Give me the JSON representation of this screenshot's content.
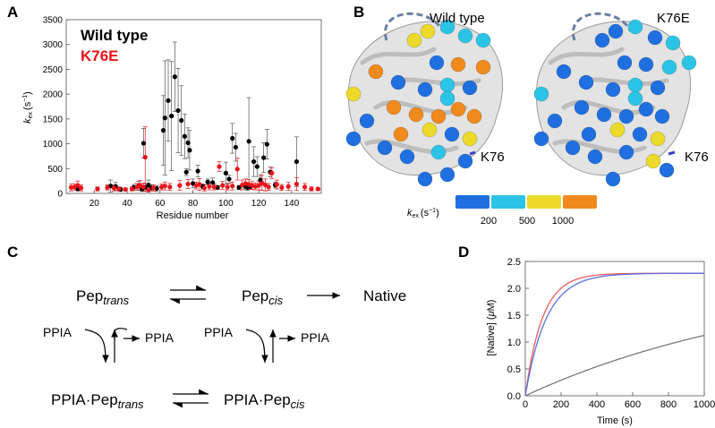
{
  "panels": {
    "a": "A",
    "b": "B",
    "c": "C",
    "d": "D"
  },
  "chart_data": [
    {
      "type": "scatter",
      "panel": "A",
      "xlabel": "Residue number",
      "ylabel_main": "k",
      "ylabel_sub": "ex",
      "ylabel_unit": "(s",
      "ylabel_exp": "−1",
      "ylabel_close": ")",
      "xlim": [
        3,
        158
      ],
      "ylim": [
        0,
        3500
      ],
      "xticks": [
        20,
        40,
        60,
        80,
        100,
        120,
        140
      ],
      "yticks": [
        0,
        500,
        1000,
        1500,
        2000,
        2500,
        3000,
        3500
      ],
      "legend_placement": "top-left",
      "colors": {
        "wild_type": "#000000",
        "k76e": "#e8141b"
      },
      "series": [
        {
          "name": "Wild type",
          "points": [
            [
              10,
              90,
              40
            ],
            [
              30,
              150,
              120
            ],
            [
              33,
              140,
              80
            ],
            [
              36,
              80,
              40
            ],
            [
              44,
              120,
              60
            ],
            [
              47,
              150,
              90
            ],
            [
              49,
              90,
              50
            ],
            [
              50,
              1010,
              300
            ],
            [
              51,
              120,
              80
            ],
            [
              53,
              170,
              100
            ],
            [
              55,
              110,
              60
            ],
            [
              58,
              100,
              60
            ],
            [
              62,
              1270,
              700
            ],
            [
              63,
              1520,
              1150
            ],
            [
              65,
              1870,
              820
            ],
            [
              67,
              1560,
              1100
            ],
            [
              69,
              2350,
              700
            ],
            [
              71,
              1670,
              850
            ],
            [
              73,
              1470,
              700
            ],
            [
              75,
              1150,
              450
            ],
            [
              76,
              430,
              70
            ],
            [
              77,
              1020,
              300
            ],
            [
              78,
              870,
              400
            ],
            [
              80,
              200,
              90
            ],
            [
              83,
              450,
              120
            ],
            [
              86,
              140,
              50
            ],
            [
              89,
              230,
              60
            ],
            [
              92,
              220,
              90
            ],
            [
              95,
              120,
              40
            ],
            [
              100,
              410,
              220
            ],
            [
              102,
              290,
              80
            ],
            [
              104,
              1110,
              300
            ],
            [
              106,
              930,
              280
            ],
            [
              108,
              120,
              40
            ],
            [
              112,
              140,
              50
            ],
            [
              113,
              120,
              60
            ],
            [
              114,
              1050,
              880
            ],
            [
              115,
              140,
              60
            ],
            [
              117,
              640,
              300
            ],
            [
              119,
              540,
              200
            ],
            [
              121,
              270,
              110
            ],
            [
              123,
              720,
              300
            ],
            [
              125,
              990,
              300
            ],
            [
              127,
              430,
              100
            ],
            [
              130,
              170,
              60
            ],
            [
              143,
              640,
              500
            ]
          ]
        },
        {
          "name": "K76E",
          "points": [
            [
              6,
              120,
              70
            ],
            [
              8,
              130,
              60
            ],
            [
              10,
              160,
              90
            ],
            [
              12,
              110,
              60
            ],
            [
              22,
              90,
              40
            ],
            [
              28,
              120,
              50
            ],
            [
              32,
              110,
              60
            ],
            [
              35,
              90,
              40
            ],
            [
              39,
              80,
              30
            ],
            [
              43,
              90,
              40
            ],
            [
              46,
              130,
              70
            ],
            [
              48,
              160,
              100
            ],
            [
              50,
              130,
              80
            ],
            [
              51,
              730,
              610
            ],
            [
              53,
              70,
              40
            ],
            [
              56,
              110,
              60
            ],
            [
              61,
              130,
              60
            ],
            [
              63,
              150,
              80
            ],
            [
              66,
              130,
              70
            ],
            [
              72,
              160,
              100
            ],
            [
              77,
              190,
              90
            ],
            [
              82,
              160,
              70
            ],
            [
              84,
              180,
              120
            ],
            [
              87,
              110,
              60
            ],
            [
              90,
              140,
              70
            ],
            [
              93,
              130,
              60
            ],
            [
              96,
              540,
              100
            ],
            [
              98,
              160,
              80
            ],
            [
              101,
              130,
              60
            ],
            [
              104,
              150,
              80
            ],
            [
              107,
              490,
              220
            ],
            [
              110,
              170,
              100
            ],
            [
              112,
              200,
              90
            ],
            [
              114,
              180,
              100
            ],
            [
              116,
              160,
              80
            ],
            [
              118,
              140,
              70
            ],
            [
              120,
              160,
              90
            ],
            [
              122,
              210,
              150
            ],
            [
              124,
              170,
              120
            ],
            [
              126,
              130,
              70
            ],
            [
              128,
              410,
              110
            ],
            [
              131,
              180,
              90
            ],
            [
              134,
              120,
              60
            ],
            [
              138,
              140,
              80
            ],
            [
              143,
              190,
              130
            ],
            [
              148,
              130,
              70
            ],
            [
              152,
              90,
              40
            ],
            [
              156,
              90,
              30
            ]
          ]
        }
      ]
    },
    {
      "type": "line",
      "panel": "D",
      "xlabel": "Time (s)",
      "ylabel_a": "[Native] (",
      "ylabel_mu": "μ",
      "ylabel_b": "M)",
      "xlim": [
        0,
        1000
      ],
      "ylim": [
        0,
        2.5
      ],
      "xticks": [
        0,
        200,
        400,
        600,
        800,
        1000
      ],
      "yticks": [
        0.0,
        0.5,
        1.0,
        1.5,
        2.0,
        2.5
      ],
      "ytick_labels": [
        "0.0",
        "0.5",
        "1.0",
        "1.5",
        "2.0",
        "2.5"
      ],
      "plateau_uM": 2.28,
      "series": [
        {
          "color": "#ee5a5a",
          "rate_per_s": 0.0105
        },
        {
          "color": "#5b6fe0",
          "rate_per_s": 0.0085
        },
        {
          "color": "#7a7a7a",
          "rate_per_s": 0.00068
        }
      ]
    }
  ],
  "structure": {
    "label_wt": "Wild type",
    "label_mut": "K76E",
    "k76_label_wt": "K76",
    "k76_label_mut": "K76",
    "scale_label_k": "k",
    "scale_label_sub": "ex",
    "scale_label_unit": "(s",
    "scale_label_exp": "−1",
    "scale_label_close": ")",
    "scale_colors": [
      "#1f6fe0",
      "#2bc4e6",
      "#ecd92a",
      "#f08a1c"
    ],
    "scale_ticks": [
      "200",
      "500",
      "1000"
    ],
    "colors": {
      "cartoon": "#d9d9d9",
      "loop": "#6b7fa6"
    }
  },
  "scheme": {
    "pep_trans_main": "Pep",
    "pep_trans_sub": "trans",
    "pep_cis_main": "Pep",
    "pep_cis_sub": "cis",
    "native": "Native",
    "ppia_1": "PPIA",
    "ppia_2": "PPIA",
    "ppia_3": "PPIA",
    "ppia_4": "PPIA",
    "complex_trans_main": "PPIA·Pep",
    "complex_trans_sub": "trans",
    "complex_cis_main": "PPIA·Pep",
    "complex_cis_sub": "cis"
  }
}
